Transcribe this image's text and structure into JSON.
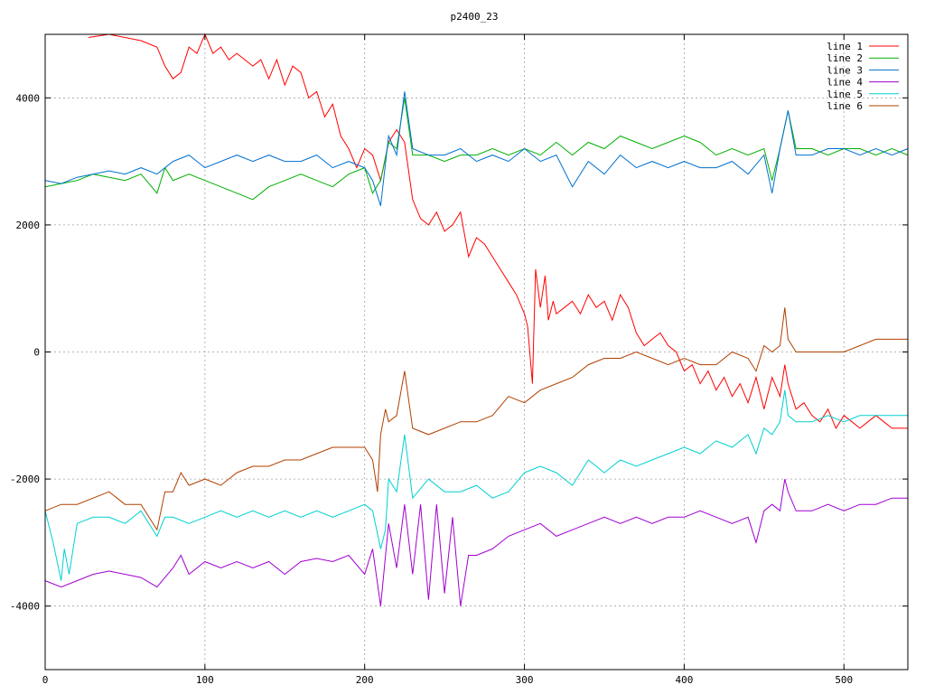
{
  "chart_data": {
    "type": "line",
    "title": "p2400_23",
    "xlim": [
      0,
      540
    ],
    "ylim": [
      -5000,
      5000
    ],
    "xticks": [
      0,
      100,
      200,
      300,
      400,
      500
    ],
    "yticks": [
      -4000,
      -2000,
      0,
      2000,
      4000
    ],
    "grid": true,
    "legend_position": "top-right",
    "series": [
      {
        "name": "line 1",
        "color": "#ff0000",
        "x": [
          27,
          40,
          60,
          70,
          75,
          80,
          85,
          90,
          95,
          100,
          105,
          110,
          115,
          120,
          130,
          135,
          140,
          145,
          150,
          155,
          160,
          165,
          170,
          175,
          180,
          185,
          190,
          195,
          200,
          205,
          210,
          215,
          220,
          225,
          230,
          235,
          240,
          245,
          250,
          255,
          260,
          265,
          270,
          275,
          280,
          285,
          290,
          295,
          300,
          302,
          305,
          307,
          310,
          313,
          315,
          318,
          320,
          325,
          330,
          335,
          340,
          345,
          350,
          355,
          360,
          365,
          370,
          375,
          380,
          385,
          390,
          395,
          400,
          405,
          410,
          415,
          420,
          425,
          430,
          435,
          440,
          445,
          450,
          455,
          460,
          463,
          465,
          470,
          475,
          480,
          485,
          490,
          495,
          500,
          505,
          510,
          515,
          520,
          525,
          530,
          535,
          540
        ],
        "y": [
          4950,
          5000,
          4900,
          4800,
          4500,
          4300,
          4400,
          4800,
          4700,
          5000,
          4700,
          4800,
          4600,
          4700,
          4500,
          4600,
          4300,
          4600,
          4200,
          4500,
          4400,
          4000,
          4100,
          3700,
          3900,
          3400,
          3200,
          2900,
          3200,
          3100,
          2700,
          3300,
          3500,
          3300,
          2400,
          2100,
          2000,
          2200,
          1900,
          2000,
          2200,
          1500,
          1800,
          1700,
          1500,
          1300,
          1100,
          900,
          600,
          400,
          -500,
          1300,
          700,
          1200,
          500,
          800,
          600,
          700,
          800,
          600,
          900,
          700,
          800,
          500,
          900,
          700,
          300,
          100,
          200,
          300,
          100,
          0,
          -300,
          -200,
          -500,
          -300,
          -600,
          -400,
          -700,
          -500,
          -800,
          -400,
          -900,
          -400,
          -700,
          -200,
          -500,
          -900,
          -800,
          -1000,
          -1100,
          -900,
          -1200,
          -1000,
          -1100,
          -1200,
          -1100,
          -1000,
          -1100,
          -1200,
          -1200,
          -1200
        ]
      },
      {
        "name": "line 2",
        "color": "#00b000",
        "x": [
          0,
          10,
          20,
          30,
          40,
          50,
          60,
          70,
          75,
          80,
          90,
          100,
          110,
          120,
          130,
          140,
          150,
          160,
          170,
          180,
          190,
          200,
          205,
          210,
          215,
          220,
          225,
          230,
          240,
          250,
          260,
          270,
          280,
          290,
          300,
          310,
          320,
          330,
          340,
          350,
          360,
          370,
          380,
          390,
          400,
          410,
          420,
          430,
          440,
          450,
          455,
          460,
          465,
          470,
          480,
          490,
          500,
          510,
          520,
          530,
          540
        ],
        "y": [
          2600,
          2650,
          2700,
          2800,
          2750,
          2700,
          2800,
          2500,
          2900,
          2700,
          2800,
          2700,
          2600,
          2500,
          2400,
          2600,
          2700,
          2800,
          2700,
          2600,
          2800,
          2900,
          2500,
          2700,
          3300,
          3200,
          4000,
          3100,
          3100,
          3000,
          3100,
          3100,
          3200,
          3100,
          3200,
          3100,
          3300,
          3100,
          3300,
          3200,
          3400,
          3300,
          3200,
          3300,
          3400,
          3300,
          3100,
          3200,
          3100,
          3200,
          2700,
          3200,
          3800,
          3200,
          3200,
          3100,
          3200,
          3200,
          3100,
          3200,
          3100
        ]
      },
      {
        "name": "line 3",
        "color": "#0070d0",
        "x": [
          0,
          10,
          20,
          30,
          40,
          50,
          60,
          70,
          80,
          90,
          100,
          110,
          120,
          130,
          140,
          150,
          160,
          170,
          180,
          190,
          200,
          205,
          210,
          215,
          220,
          225,
          230,
          240,
          250,
          260,
          270,
          280,
          290,
          300,
          310,
          320,
          330,
          340,
          350,
          360,
          370,
          380,
          390,
          400,
          410,
          420,
          430,
          440,
          450,
          455,
          460,
          465,
          470,
          480,
          490,
          500,
          510,
          520,
          530,
          540
        ],
        "y": [
          2700,
          2650,
          2750,
          2800,
          2850,
          2800,
          2900,
          2800,
          3000,
          3100,
          2900,
          3000,
          3100,
          3000,
          3100,
          3000,
          3000,
          3100,
          2900,
          3000,
          2900,
          2700,
          2300,
          3400,
          3100,
          4100,
          3200,
          3100,
          3100,
          3200,
          3000,
          3100,
          3000,
          3200,
          3000,
          3100,
          2600,
          3000,
          2800,
          3100,
          2900,
          3000,
          2900,
          3000,
          2900,
          2900,
          3000,
          2800,
          3100,
          2500,
          3200,
          3800,
          3100,
          3100,
          3200,
          3200,
          3100,
          3200,
          3100,
          3200
        ]
      },
      {
        "name": "line 4",
        "color": "#a000d0",
        "x": [
          0,
          10,
          20,
          30,
          40,
          50,
          60,
          70,
          80,
          85,
          90,
          100,
          110,
          120,
          130,
          140,
          150,
          160,
          170,
          180,
          190,
          200,
          205,
          210,
          215,
          220,
          225,
          230,
          235,
          240,
          245,
          250,
          255,
          260,
          265,
          270,
          280,
          290,
          300,
          310,
          320,
          330,
          340,
          350,
          360,
          370,
          380,
          390,
          400,
          410,
          420,
          430,
          440,
          445,
          450,
          455,
          460,
          463,
          465,
          470,
          480,
          490,
          500,
          510,
          520,
          530,
          540
        ],
        "y": [
          -3600,
          -3700,
          -3600,
          -3500,
          -3450,
          -3500,
          -3550,
          -3700,
          -3400,
          -3200,
          -3500,
          -3300,
          -3400,
          -3300,
          -3400,
          -3300,
          -3500,
          -3300,
          -3250,
          -3300,
          -3200,
          -3500,
          -3100,
          -4000,
          -2700,
          -3400,
          -2400,
          -3500,
          -2400,
          -3900,
          -2400,
          -3800,
          -2600,
          -4000,
          -3200,
          -3200,
          -3100,
          -2900,
          -2800,
          -2700,
          -2900,
          -2800,
          -2700,
          -2600,
          -2700,
          -2600,
          -2700,
          -2600,
          -2600,
          -2500,
          -2600,
          -2700,
          -2600,
          -3000,
          -2500,
          -2400,
          -2500,
          -2000,
          -2200,
          -2500,
          -2500,
          -2400,
          -2500,
          -2400,
          -2400,
          -2300,
          -2300
        ]
      },
      {
        "name": "line 5",
        "color": "#00d0d0",
        "x": [
          0,
          5,
          10,
          12,
          15,
          20,
          30,
          40,
          50,
          60,
          70,
          75,
          80,
          90,
          100,
          110,
          120,
          130,
          140,
          150,
          160,
          170,
          180,
          190,
          200,
          205,
          210,
          213,
          215,
          220,
          225,
          230,
          240,
          250,
          260,
          270,
          280,
          290,
          300,
          310,
          320,
          330,
          340,
          350,
          360,
          370,
          380,
          390,
          400,
          410,
          420,
          430,
          440,
          445,
          450,
          455,
          460,
          463,
          465,
          470,
          480,
          490,
          500,
          510,
          520,
          530,
          540
        ],
        "y": [
          -2500,
          -3000,
          -3600,
          -3100,
          -3500,
          -2700,
          -2600,
          -2600,
          -2700,
          -2500,
          -2900,
          -2600,
          -2600,
          -2700,
          -2600,
          -2500,
          -2600,
          -2500,
          -2600,
          -2500,
          -2600,
          -2500,
          -2600,
          -2500,
          -2400,
          -2500,
          -3100,
          -2800,
          -2000,
          -2200,
          -1300,
          -2300,
          -2000,
          -2200,
          -2200,
          -2100,
          -2300,
          -2200,
          -1900,
          -1800,
          -1900,
          -2100,
          -1700,
          -1900,
          -1700,
          -1800,
          -1700,
          -1600,
          -1500,
          -1600,
          -1400,
          -1500,
          -1300,
          -1600,
          -1200,
          -1300,
          -1100,
          -600,
          -1000,
          -1100,
          -1100,
          -1000,
          -1100,
          -1000,
          -1000,
          -1000,
          -1000
        ]
      },
      {
        "name": "line 6",
        "color": "#b04000",
        "x": [
          0,
          10,
          20,
          30,
          40,
          50,
          60,
          70,
          75,
          80,
          85,
          90,
          100,
          110,
          120,
          130,
          140,
          150,
          160,
          170,
          180,
          190,
          200,
          205,
          208,
          210,
          213,
          215,
          220,
          225,
          230,
          240,
          250,
          260,
          270,
          280,
          290,
          300,
          310,
          320,
          330,
          340,
          350,
          360,
          370,
          380,
          390,
          400,
          410,
          420,
          430,
          440,
          445,
          450,
          455,
          460,
          463,
          465,
          470,
          480,
          490,
          500,
          510,
          520,
          530,
          540
        ],
        "y": [
          -2500,
          -2400,
          -2400,
          -2300,
          -2200,
          -2400,
          -2400,
          -2800,
          -2200,
          -2200,
          -1900,
          -2100,
          -2000,
          -2100,
          -1900,
          -1800,
          -1800,
          -1700,
          -1700,
          -1600,
          -1500,
          -1500,
          -1500,
          -1700,
          -2200,
          -1300,
          -900,
          -1100,
          -1000,
          -300,
          -1200,
          -1300,
          -1200,
          -1100,
          -1100,
          -1000,
          -700,
          -800,
          -600,
          -500,
          -400,
          -200,
          -100,
          -100,
          0,
          -100,
          -200,
          -100,
          -200,
          -200,
          0,
          -100,
          -300,
          100,
          0,
          100,
          700,
          200,
          0,
          0,
          0,
          0,
          100,
          200,
          200,
          200
        ]
      }
    ]
  }
}
